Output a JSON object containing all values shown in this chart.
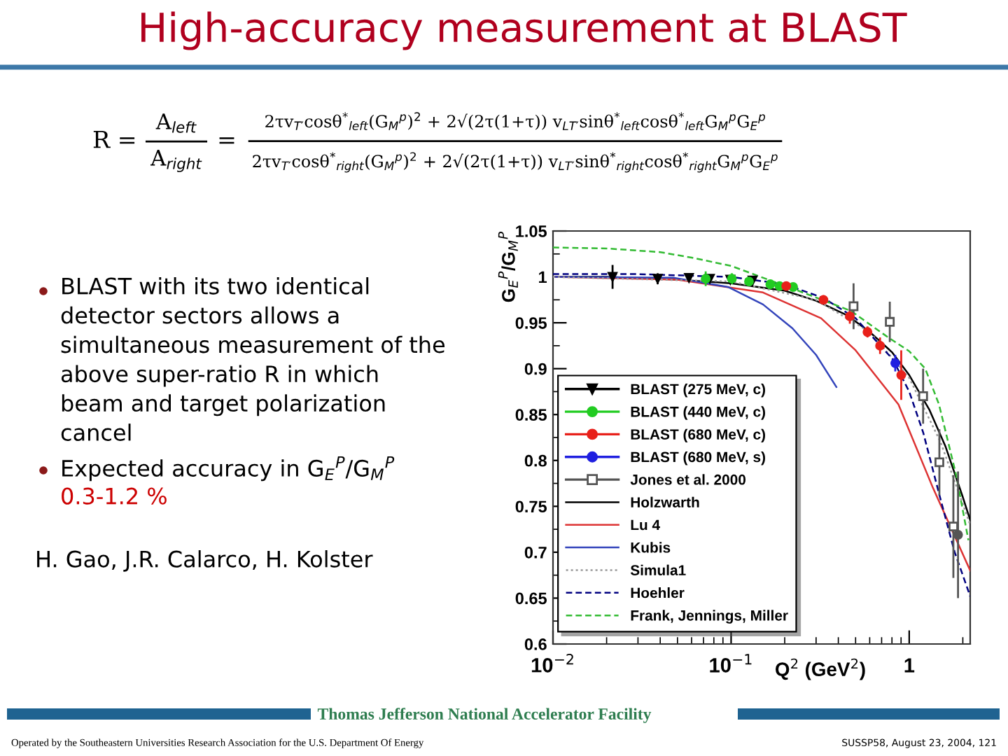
{
  "chart_data": {
    "type": "scatter",
    "title": "High-accuracy measurement at BLAST",
    "xlabel": "Q$^{2}$ (GeV$^{2}$)",
    "ylabel": "G$_{E}$$^{P}$/G$_{M}$$^{P}$",
    "log": "x",
    "xlim": [
      0.01,
      2.2
    ],
    "xticks": [
      {
        "value": 0.01,
        "label": "10$^{−2}$"
      },
      {
        "value": 0.1,
        "label": "10$^{−1}$"
      },
      1
    ],
    "ylim": [
      0.6,
      1.05
    ],
    "yticks": [
      0.6,
      0.65,
      0.7,
      0.75,
      0.8,
      0.85,
      0.9,
      0.95,
      1,
      1.05
    ],
    "legend": "bottom left",
    "series": [
      {
        "name": "BLAST (275 MeV, c)",
        "color": "#000000",
        "marker": "triangle",
        "x": [
          0.0216,
          0.0387,
          0.058,
          0.076,
          0.099,
          0.132
        ],
        "values": [
          1.0,
          0.998,
          0.999,
          0.998,
          0.997,
          0.996
        ],
        "errors": [
          0.013,
          0.006,
          0.004,
          0.004,
          0.003,
          0.003
        ]
      },
      {
        "name": "BLAST (440 MeV, c)",
        "color": "#22cc22",
        "marker": "circle",
        "x": [
          0.072,
          0.101,
          0.126,
          0.166,
          0.187,
          0.223
        ],
        "values": [
          0.998,
          0.998,
          0.995,
          0.992,
          0.99,
          0.989
        ],
        "errors": [
          0.008,
          0.006,
          0.005,
          0.004,
          0.004,
          0.004
        ]
      },
      {
        "name": "BLAST (680 MeV, c)",
        "color": "#e8201a",
        "marker": "circle",
        "x": [
          0.204,
          0.33,
          0.464,
          0.583,
          0.686,
          0.902
        ],
        "values": [
          0.99,
          0.975,
          0.957,
          0.94,
          0.925,
          0.893
        ],
        "errors": [
          0.004,
          0.005,
          0.008,
          0.006,
          0.009,
          0.027
        ]
      },
      {
        "name": "BLAST (680 MeV, s)",
        "color": "#1f1fe0",
        "marker": "circle",
        "x": [
          0.835
        ],
        "values": [
          0.906
        ],
        "errors": [
          0.009
        ]
      },
      {
        "name": "Jones et al. 2000",
        "color": "#555555",
        "marker": "square",
        "x": [
          0.487,
          0.778,
          1.197,
          1.477,
          1.77
        ],
        "values": [
          0.968,
          0.951,
          0.87,
          0.798,
          0.728
        ],
        "errors": [
          0.025,
          0.022,
          0.03,
          0.036,
          0.056
        ]
      },
      {
        "color": "#555555",
        "marker": "circle",
        "x": [
          1.88
        ],
        "values": [
          0.719
        ],
        "errors": [
          0.069
        ]
      },
      {
        "name": "Holzwarth",
        "type": "line",
        "color": "#000000",
        "line_style": "solid",
        "x": [
          0.01,
          0.02,
          0.05,
          0.1,
          0.2,
          0.3,
          0.45,
          0.6,
          0.8,
          1.0,
          1.3,
          1.6,
          2.0,
          2.2
        ],
        "values": [
          1.0,
          1.0,
          0.997,
          0.993,
          0.985,
          0.974,
          0.958,
          0.94,
          0.918,
          0.893,
          0.855,
          0.815,
          0.76,
          0.735
        ]
      },
      {
        "name": "Lu 4",
        "type": "line",
        "color": "#dd3333",
        "line_style": "solid",
        "x": [
          0.01,
          0.05,
          0.151,
          0.32,
          0.5,
          0.87,
          1.36,
          2.2
        ],
        "values": [
          1.0,
          0.997,
          0.983,
          0.955,
          0.92,
          0.861,
          0.77,
          0.68
        ]
      },
      {
        "name": "Kubis",
        "type": "line",
        "color": "#3344bb",
        "line_style": "solid",
        "x": [
          0.01,
          0.048,
          0.096,
          0.151,
          0.221,
          0.3,
          0.39
        ],
        "values": [
          1.0,
          0.999,
          0.989,
          0.97,
          0.944,
          0.915,
          0.88
        ]
      },
      {
        "name": "Simula1",
        "type": "line",
        "color": "#999999",
        "line_style": "dotted",
        "x": [
          0.01,
          0.1,
          0.3,
          0.6,
          1.0,
          1.5,
          2.2
        ],
        "values": [
          1.0,
          0.995,
          0.975,
          0.94,
          0.89,
          0.82,
          0.73
        ]
      },
      {
        "name": "Hoehler",
        "type": "line",
        "color": "#000080",
        "line_style": "dashed",
        "x": [
          0.01,
          0.03,
          0.1,
          0.2,
          0.33,
          0.5,
          0.81,
          1.0,
          1.2,
          1.47,
          1.8,
          2.2
        ],
        "values": [
          1.003,
          1.003,
          1.0,
          0.992,
          0.977,
          0.955,
          0.91,
          0.875,
          0.83,
          0.764,
          0.7,
          0.652
        ]
      },
      {
        "name": "Frank, Jennings, Miller",
        "type": "line",
        "color": "#33bb33",
        "line_style": "dashed",
        "x": [
          0.01,
          0.02,
          0.04,
          0.06,
          0.1,
          0.245,
          0.47,
          0.75,
          1.0,
          1.23,
          1.47,
          1.84,
          2.15
        ],
        "values": [
          1.032,
          1.031,
          1.027,
          1.021,
          1.012,
          0.984,
          0.963,
          0.935,
          0.919,
          0.9,
          0.861,
          0.783,
          0.713
        ]
      }
    ],
    "annotations": [
      "R =",
      "A$_{left}$",
      "A$_{right}$",
      "=",
      "2τv$_{T′}$cosθ$^{*}$$_{left}$(G$_{M}$$^{p}$)$^{2}$ + 2√(2τ(1+τ)) v$_{LT′}$sinθ$^{*}$$_{left}$cosθ$^{*}$$_{left}$G$_{M}$$^{p}$G$_{E}$$^{p}$",
      "2τv$_{T′}$cosθ$^{*}$$_{right}$(G$_{M}$$^{p}$)$^{2}$ + 2√(2τ(1+τ)) v$_{LT′}$sinθ$^{*}$$_{right}$cosθ$^{*}$$_{right}$G$_{M}$$^{p}$G$_{E}$$^{p}$",
      "BLAST with its two identical\ndetector sectors allows a\nsimultaneous measurement of the\nabove super-ratio R in which\nbeam and target polarization\ncancel",
      "Expected accuracy in G$_{E}$$^{P}$/G$_{M}$$^{P}$",
      "0.3-1.2 %",
      "H. Gao, J.R. Calarco, H. Kolster",
      "Thomas Jefferson National Accelerator Facility",
      "Operated by the Southeastern Universities Research Association for the U.S. Department Of Energy",
      "SUSSP58, August 23, 2004, 121"
    ]
  }
}
